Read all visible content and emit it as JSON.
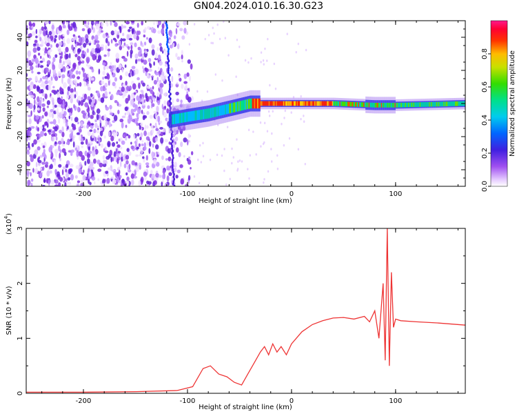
{
  "title": "GN04.2024.010.16.30.G23",
  "chart_data": [
    {
      "type": "heatmap",
      "xlabel": "Height of straight line (km)",
      "ylabel": "Frequency (Hz)",
      "xlim": [
        -255,
        167
      ],
      "ylim": [
        -50,
        50
      ],
      "x_ticks": [
        -200,
        -100,
        0,
        100
      ],
      "x_tick_labels": [
        "-200",
        "-100",
        "0",
        "100"
      ],
      "y_ticks": [
        -40,
        -20,
        0,
        20,
        40
      ],
      "y_tick_labels": [
        "-40",
        "-20",
        "0",
        "20",
        "40"
      ],
      "colorbar": {
        "label": "Normalized spectral amplitude",
        "range": [
          0,
          1
        ],
        "ticks": [
          0.0,
          0.2,
          0.4,
          0.6,
          0.8
        ],
        "tick_labels": [
          "0.0",
          "0.2",
          "0.4",
          "0.6",
          "0.8"
        ],
        "colormap": [
          "#ffffff",
          "#d9b3ff",
          "#8a2be2",
          "#3a1ae8",
          "#0066ff",
          "#00ccff",
          "#00e08a",
          "#33dd00",
          "#c8e000",
          "#ffcc00",
          "#ff6600",
          "#ff0000",
          "#ff1a8c"
        ]
      },
      "features": {
        "noise_region_x": [
          -255,
          -115
        ],
        "edge_x": -120,
        "track": [
          {
            "x": -118,
            "f": -10
          },
          {
            "x": -100,
            "f": -8
          },
          {
            "x": -80,
            "f": -6
          },
          {
            "x": -60,
            "f": -3
          },
          {
            "x": -40,
            "f": 0
          },
          {
            "x": -20,
            "f": 0
          },
          {
            "x": 0,
            "f": 0
          },
          {
            "x": 40,
            "f": 0
          },
          {
            "x": 80,
            "f": -1
          },
          {
            "x": 100,
            "f": -1
          },
          {
            "x": 167,
            "f": 0
          }
        ]
      },
      "grid": false
    },
    {
      "type": "line",
      "xlabel": "Height of straight line (km)",
      "ylabel": "SNR (10 * v/v)",
      "y_scale_label": "(x10",
      "y_scale_exp": "4",
      "y_scale_close": ")",
      "xlim": [
        -255,
        167
      ],
      "ylim": [
        0,
        3
      ],
      "x_ticks": [
        -200,
        -100,
        0,
        100
      ],
      "x_tick_labels": [
        "-200",
        "-100",
        "0",
        "100"
      ],
      "y_ticks": [
        0,
        1,
        2,
        3
      ],
      "y_tick_labels": [
        "0",
        "1",
        "2",
        "3"
      ],
      "series": [
        {
          "color": "#ee3333",
          "x": [
            -255,
            -200,
            -150,
            -110,
            -95,
            -85,
            -78,
            -70,
            -62,
            -55,
            -48,
            -42,
            -36,
            -30,
            -26,
            -22,
            -18,
            -14,
            -10,
            -5,
            0,
            10,
            20,
            30,
            40,
            50,
            60,
            70,
            75,
            80,
            84,
            88,
            90,
            92,
            94,
            96,
            98,
            100,
            105,
            120,
            140,
            167
          ],
          "y": [
            0.02,
            0.02,
            0.03,
            0.05,
            0.12,
            0.45,
            0.5,
            0.35,
            0.3,
            0.2,
            0.15,
            0.35,
            0.55,
            0.75,
            0.85,
            0.7,
            0.9,
            0.75,
            0.85,
            0.7,
            0.9,
            1.12,
            1.25,
            1.32,
            1.37,
            1.38,
            1.35,
            1.4,
            1.3,
            1.5,
            1.0,
            2.0,
            0.6,
            3.0,
            0.5,
            2.2,
            1.2,
            1.35,
            1.32,
            1.3,
            1.28,
            1.24
          ]
        }
      ],
      "grid": false
    }
  ]
}
